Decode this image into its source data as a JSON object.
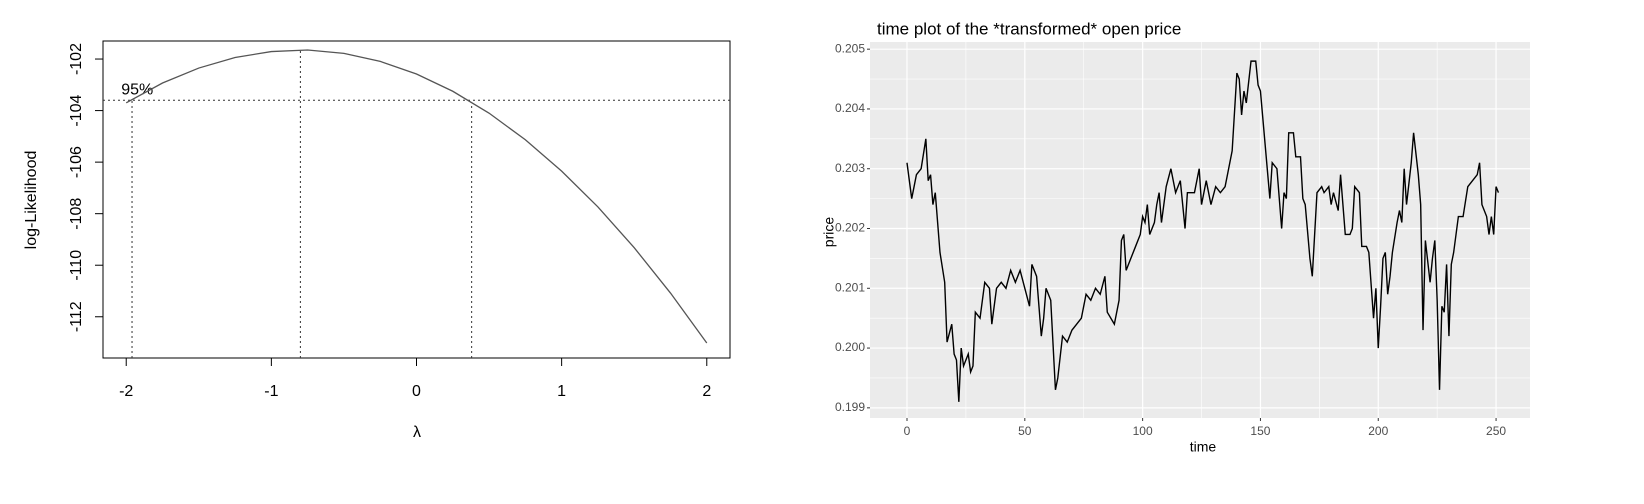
{
  "chart_data": [
    {
      "type": "line",
      "x_label": "λ",
      "y_label": "log-Likelihood",
      "x": [
        -2,
        -1.75,
        -1.5,
        -1.25,
        -1,
        -0.75,
        -0.5,
        -0.25,
        0,
        0.25,
        0.5,
        0.75,
        1,
        1.25,
        1.5,
        1.75,
        2
      ],
      "values": [
        -103.7,
        -102.93,
        -102.35,
        -101.94,
        -101.71,
        -101.65,
        -101.78,
        -102.09,
        -102.58,
        -103.25,
        -104.1,
        -105.13,
        -106.35,
        -107.74,
        -109.32,
        -111.08,
        -113.02
      ],
      "color": "#555555",
      "xlim": [
        -2.16,
        2.16
      ],
      "ylim": [
        -113.6,
        -101.3
      ],
      "xticks": [
        -2,
        -1,
        0,
        1,
        2
      ],
      "yticks": [
        -112,
        -110,
        -108,
        -106,
        -104,
        -102
      ],
      "hlines": [
        -103.6
      ],
      "vlines": [
        -1.96,
        -0.8,
        0.38
      ],
      "annotation": "95%",
      "grid": false
    },
    {
      "type": "line",
      "title": "time plot of the *transformed* open price",
      "x_label": "time",
      "y_label": "price",
      "x": [
        0,
        2,
        4,
        6,
        8,
        9,
        10,
        11,
        12,
        14,
        16,
        17,
        19,
        20,
        21,
        22,
        23,
        24,
        26,
        27,
        28,
        29,
        31,
        33,
        35,
        36,
        38,
        40,
        42,
        44,
        46,
        48,
        50,
        52,
        53,
        55,
        57,
        58,
        59,
        61,
        63,
        64,
        66,
        68,
        70,
        72,
        74,
        76,
        78,
        80,
        82,
        84,
        85,
        88,
        90,
        91,
        92,
        93,
        95,
        97,
        99,
        100,
        101,
        102,
        103,
        105,
        106,
        107,
        108,
        110,
        112,
        114,
        116,
        118,
        119,
        122,
        124,
        125,
        127,
        129,
        131,
        133,
        135,
        136,
        138,
        140,
        141,
        142,
        143,
        144,
        146,
        148,
        149,
        150,
        152,
        154,
        155,
        157,
        159,
        160,
        161,
        162,
        164,
        165,
        167,
        168,
        169,
        171,
        172,
        174,
        176,
        177,
        179,
        180,
        181,
        183,
        184,
        186,
        188,
        189,
        190,
        192,
        193,
        195,
        196,
        198,
        199,
        200,
        201,
        202,
        203,
        204,
        205,
        206,
        208,
        209,
        210,
        211,
        212,
        214,
        215,
        217,
        218,
        219,
        220,
        222,
        223,
        224,
        225,
        226,
        227,
        228,
        229,
        230,
        231,
        232,
        234,
        236,
        238,
        240,
        242,
        243,
        244,
        246,
        247,
        248,
        249,
        250,
        251
      ],
      "values": [
        0.2031,
        0.2025,
        0.2029,
        0.203,
        0.2035,
        0.2028,
        0.2029,
        0.2024,
        0.2026,
        0.2016,
        0.2011,
        0.2001,
        0.2004,
        0.1999,
        0.1998,
        0.1991,
        0.2,
        0.1997,
        0.1999,
        0.1996,
        0.1997,
        0.2006,
        0.2005,
        0.2011,
        0.201,
        0.2004,
        0.201,
        0.2011,
        0.201,
        0.2013,
        0.2011,
        0.2013,
        0.201,
        0.2007,
        0.2014,
        0.2012,
        0.2002,
        0.2005,
        0.201,
        0.2008,
        0.1993,
        0.1995,
        0.2002,
        0.2001,
        0.2003,
        0.2004,
        0.2005,
        0.2009,
        0.2008,
        0.201,
        0.2009,
        0.2012,
        0.2006,
        0.2004,
        0.2008,
        0.2018,
        0.2019,
        0.2013,
        0.2015,
        0.2017,
        0.2019,
        0.2022,
        0.2021,
        0.2024,
        0.2019,
        0.2021,
        0.2024,
        0.2026,
        0.2021,
        0.2027,
        0.203,
        0.2026,
        0.2028,
        0.202,
        0.2026,
        0.2026,
        0.203,
        0.2024,
        0.2028,
        0.2024,
        0.2027,
        0.2026,
        0.2027,
        0.2029,
        0.2033,
        0.2046,
        0.2045,
        0.2039,
        0.2043,
        0.2041,
        0.2048,
        0.2048,
        0.2044,
        0.2043,
        0.2034,
        0.2025,
        0.2031,
        0.203,
        0.202,
        0.2026,
        0.2025,
        0.2036,
        0.2036,
        0.2032,
        0.2032,
        0.2025,
        0.2024,
        0.2015,
        0.2012,
        0.2026,
        0.2027,
        0.2026,
        0.2027,
        0.2024,
        0.2026,
        0.2023,
        0.2029,
        0.2019,
        0.2019,
        0.202,
        0.2027,
        0.2026,
        0.2017,
        0.2017,
        0.2016,
        0.2005,
        0.201,
        0.2,
        0.2007,
        0.2015,
        0.2016,
        0.2009,
        0.2012,
        0.2016,
        0.2021,
        0.2023,
        0.2021,
        0.203,
        0.2024,
        0.2031,
        0.2036,
        0.2029,
        0.2024,
        0.2003,
        0.2018,
        0.2011,
        0.2015,
        0.2018,
        0.2008,
        0.1993,
        0.2007,
        0.2006,
        0.2014,
        0.2002,
        0.2014,
        0.2016,
        0.2022,
        0.2022,
        0.2027,
        0.2028,
        0.2029,
        0.2031,
        0.2024,
        0.2022,
        0.2019,
        0.2022,
        0.2019,
        0.2027,
        0.2026
      ],
      "color": "#000000",
      "xlim": [
        -15.7,
        264.4
      ],
      "ylim": [
        0.19883,
        0.20512
      ],
      "xticks": [
        0,
        50,
        100,
        150,
        200,
        250
      ],
      "yticks": [
        0.199,
        {
          "value": 0.2,
          "label": "0.200"
        },
        0.201,
        0.202,
        0.203,
        0.204,
        0.205
      ],
      "minor_xticks": [
        25,
        75,
        125,
        175,
        225
      ],
      "minor_yticks": [
        0.1995,
        0.2005,
        0.2015,
        0.2025,
        0.2035,
        0.2045
      ],
      "background": "#ebebeb",
      "grid": true
    }
  ]
}
